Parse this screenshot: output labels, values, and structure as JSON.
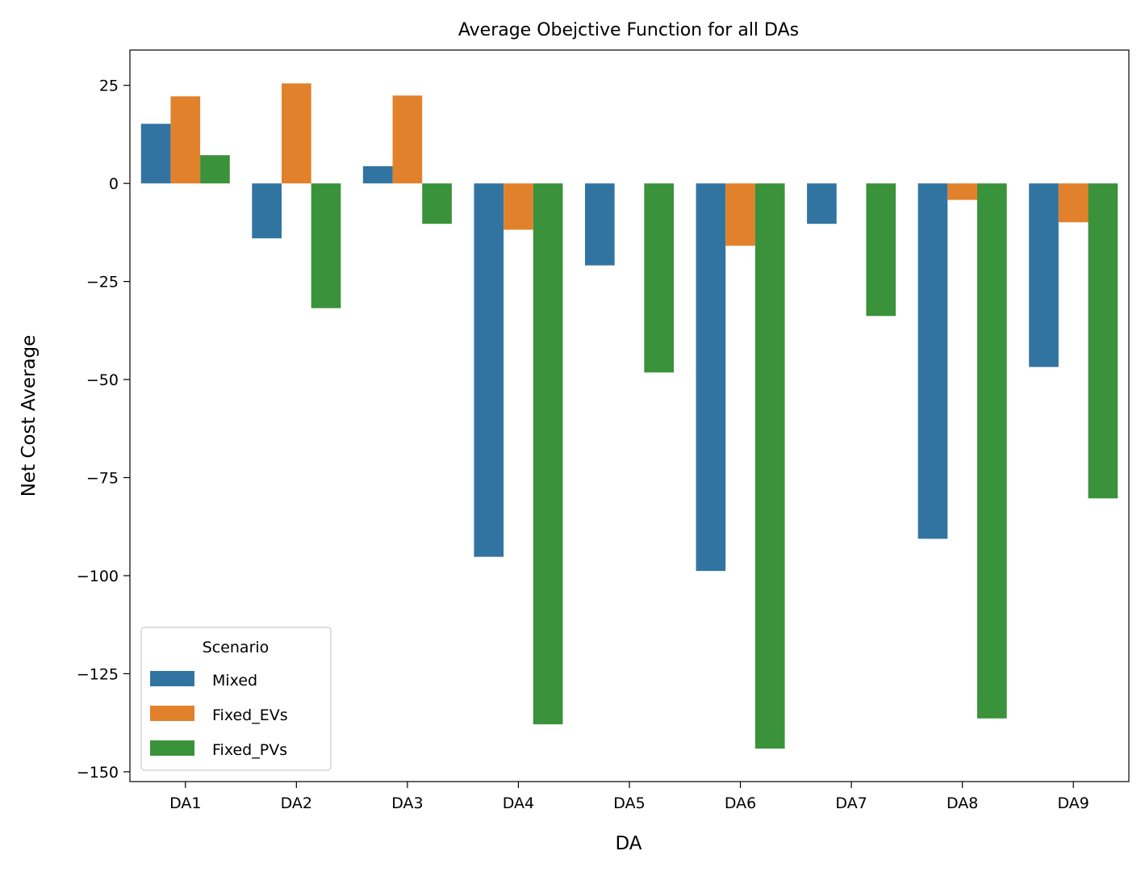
{
  "chart_data": {
    "type": "bar",
    "title": "Average Obejctive Function for all DAs",
    "xlabel": "DA",
    "ylabel": "Net Cost Average",
    "categories": [
      "DA1",
      "DA2",
      "DA3",
      "DA4",
      "DA5",
      "DA6",
      "DA7",
      "DA8",
      "DA9"
    ],
    "series": [
      {
        "name": "Mixed",
        "color": "#3274a1",
        "values": [
          15.2,
          -14.0,
          4.4,
          -95.2,
          -20.9,
          -98.8,
          -10.3,
          -90.6,
          -46.8
        ]
      },
      {
        "name": "Fixed_EVs",
        "color": "#e1812c",
        "values": [
          22.2,
          25.5,
          22.4,
          -11.8,
          0,
          -15.9,
          0,
          -4.2,
          -9.9
        ]
      },
      {
        "name": "Fixed_PVs",
        "color": "#3a923a",
        "values": [
          7.2,
          -31.8,
          -10.3,
          -137.9,
          -48.2,
          -144.1,
          -33.8,
          -136.4,
          -80.3
        ]
      }
    ],
    "ylim": [
      -152.5,
      34
    ],
    "yticks": [
      25,
      0,
      -25,
      -50,
      -75,
      -100,
      -125,
      -150
    ],
    "ytick_labels": [
      "25",
      "0",
      "−25",
      "−50",
      "−75",
      "−100",
      "−125",
      "−150"
    ],
    "legend": {
      "title": "Scenario",
      "position": "lower-left"
    },
    "grid": false
  }
}
